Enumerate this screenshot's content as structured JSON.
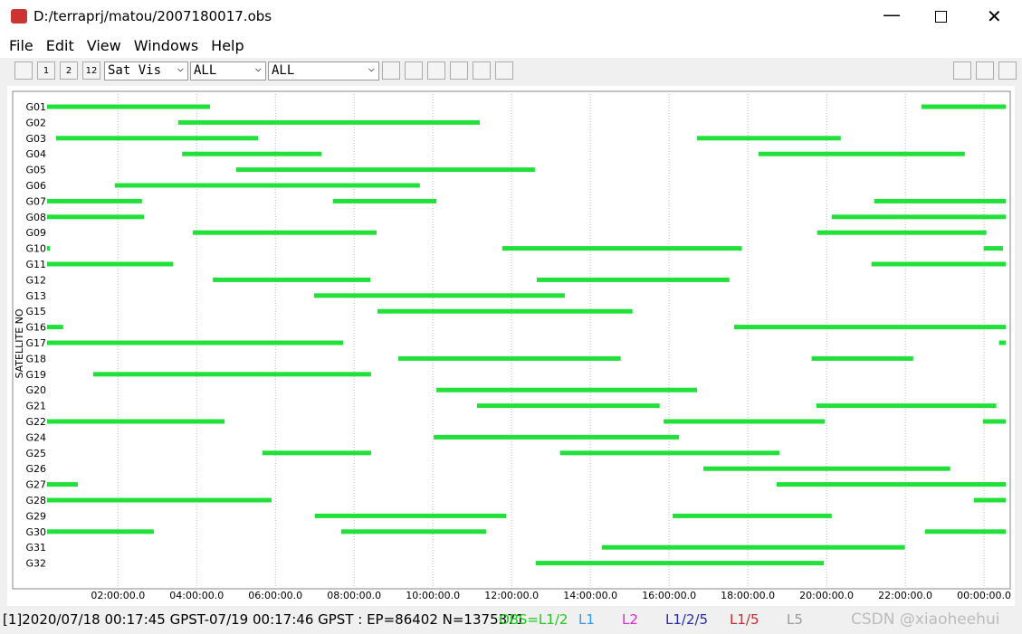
{
  "window": {
    "title": "D:/terraprj/matou/2007180017.obs"
  },
  "menu": [
    "File",
    "Edit",
    "View",
    "Windows",
    "Help"
  ],
  "toolbar": {
    "buttons": [
      "1",
      "2",
      "12"
    ],
    "selects": [
      "Sat Vis",
      "ALL",
      "ALL"
    ]
  },
  "chart_data": {
    "type": "timeline",
    "ylabel": "SATELLITE NO",
    "xlim": [
      0.2,
      24.55
    ],
    "xticks": [
      {
        "value": 2,
        "label": "02:00:00.0"
      },
      {
        "value": 4,
        "label": "04:00:00.0"
      },
      {
        "value": 6,
        "label": "06:00:00.0"
      },
      {
        "value": 8,
        "label": "08:00:00.0"
      },
      {
        "value": 10,
        "label": "10:00:00.0"
      },
      {
        "value": 12,
        "label": "12:00:00.0"
      },
      {
        "value": 14,
        "label": "14:00:00.0"
      },
      {
        "value": 16,
        "label": "16:00:00.0"
      },
      {
        "value": 18,
        "label": "18:00:00.0"
      },
      {
        "value": 20,
        "label": "20:00:00.0"
      },
      {
        "value": 22,
        "label": "22:00:00.0"
      },
      {
        "value": 24,
        "label": "00:00:00.0"
      }
    ],
    "grid": true,
    "color": "#22e03a",
    "satellites": [
      {
        "name": "G01",
        "intervals": [
          [
            0.2,
            4.34
          ],
          [
            22.41,
            24.55
          ]
        ]
      },
      {
        "name": "G02",
        "intervals": [
          [
            3.53,
            11.19
          ]
        ]
      },
      {
        "name": "G03",
        "intervals": [
          [
            0.43,
            5.56
          ],
          [
            16.71,
            20.36
          ]
        ]
      },
      {
        "name": "G04",
        "intervals": [
          [
            3.63,
            7.17
          ],
          [
            18.27,
            23.51
          ]
        ]
      },
      {
        "name": "G05",
        "intervals": [
          [
            5.0,
            12.59
          ]
        ]
      },
      {
        "name": "G06",
        "intervals": [
          [
            1.92,
            9.67
          ]
        ]
      },
      {
        "name": "G07",
        "intervals": [
          [
            0.2,
            2.61
          ],
          [
            7.46,
            10.09
          ],
          [
            21.21,
            24.55
          ]
        ]
      },
      {
        "name": "G08",
        "intervals": [
          [
            0.2,
            2.66
          ],
          [
            20.13,
            24.55
          ]
        ]
      },
      {
        "name": "G09",
        "intervals": [
          [
            3.9,
            8.57
          ],
          [
            19.76,
            24.06
          ]
        ]
      },
      {
        "name": "G10",
        "intervals": [
          [
            0.2,
            0.27
          ],
          [
            11.76,
            17.85
          ],
          [
            23.99,
            24.48
          ]
        ]
      },
      {
        "name": "G11",
        "intervals": [
          [
            0.2,
            3.4
          ],
          [
            21.14,
            24.55
          ]
        ]
      },
      {
        "name": "G12",
        "intervals": [
          [
            4.41,
            8.41
          ],
          [
            12.64,
            17.53
          ]
        ]
      },
      {
        "name": "G13",
        "intervals": [
          [
            6.98,
            13.35
          ]
        ]
      },
      {
        "name": "G15",
        "intervals": [
          [
            8.59,
            15.07
          ]
        ]
      },
      {
        "name": "G16",
        "intervals": [
          [
            0.2,
            0.61
          ],
          [
            17.65,
            24.55
          ]
        ]
      },
      {
        "name": "G17",
        "intervals": [
          [
            0.2,
            7.72
          ],
          [
            24.38,
            24.55
          ]
        ]
      },
      {
        "name": "G18",
        "intervals": [
          [
            9.12,
            14.77
          ],
          [
            19.62,
            22.2
          ]
        ]
      },
      {
        "name": "G19",
        "intervals": [
          [
            1.37,
            8.43
          ]
        ]
      },
      {
        "name": "G20",
        "intervals": [
          [
            10.09,
            16.71
          ]
        ]
      },
      {
        "name": "G21",
        "intervals": [
          [
            11.12,
            15.76
          ],
          [
            19.74,
            24.31
          ]
        ]
      },
      {
        "name": "G22",
        "intervals": [
          [
            0.2,
            4.71
          ],
          [
            15.86,
            19.95
          ],
          [
            23.97,
            24.55
          ]
        ]
      },
      {
        "name": "G24",
        "intervals": [
          [
            10.02,
            16.25
          ]
        ]
      },
      {
        "name": "G25",
        "intervals": [
          [
            5.67,
            8.43
          ],
          [
            13.23,
            18.8
          ]
        ]
      },
      {
        "name": "G26",
        "intervals": [
          [
            16.87,
            23.14
          ]
        ]
      },
      {
        "name": "G27",
        "intervals": [
          [
            0.2,
            0.98
          ],
          [
            18.73,
            24.55
          ]
        ]
      },
      {
        "name": "G28",
        "intervals": [
          [
            0.2,
            5.9
          ],
          [
            23.74,
            24.55
          ]
        ]
      },
      {
        "name": "G29",
        "intervals": [
          [
            7.0,
            11.86
          ],
          [
            16.09,
            20.13
          ]
        ]
      },
      {
        "name": "G30",
        "intervals": [
          [
            0.2,
            2.91
          ],
          [
            7.67,
            11.35
          ],
          [
            22.5,
            24.55
          ]
        ]
      },
      {
        "name": "G31",
        "intervals": [
          [
            14.29,
            21.99
          ]
        ]
      },
      {
        "name": "G32",
        "intervals": [
          [
            12.61,
            19.93
          ]
        ]
      }
    ]
  },
  "status": {
    "text": "[1]2020/07/18 00:17:45 GPST-07/19 00:17:46 GPST : EP=86402 N=1375371",
    "legend": [
      {
        "label": "OBS=L1/2",
        "color": "#22c822"
      },
      {
        "label": "L1",
        "color": "#2a9ae8"
      },
      {
        "label": "L2",
        "color": "#d82ad8"
      },
      {
        "label": "L1/2/5",
        "color": "#2a2aa8"
      },
      {
        "label": "L1/5",
        "color": "#c82a2a"
      },
      {
        "label": "L5",
        "color": "#9a9a9a"
      }
    ]
  },
  "watermark": "CSDN @xiaoheehui"
}
